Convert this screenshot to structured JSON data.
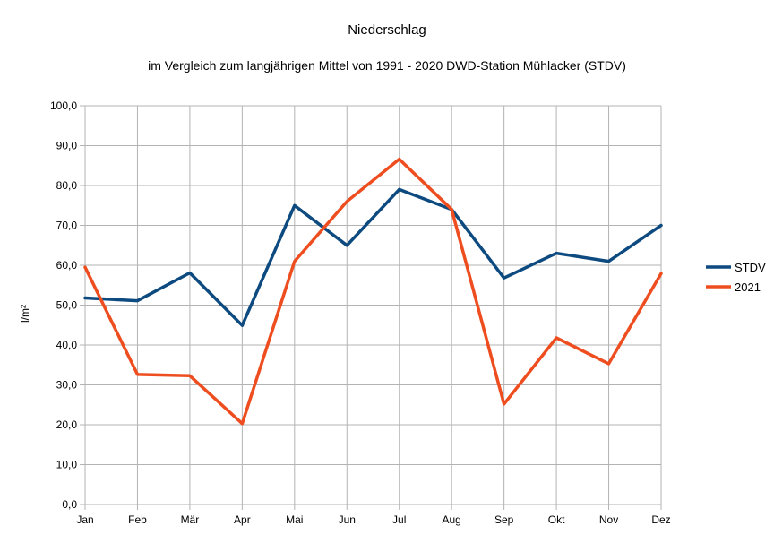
{
  "chart_data": {
    "type": "line",
    "title": "Niederschlag",
    "subtitle": "im Vergleich zum langjährigen Mittel von 1991 - 2020 DWD-Station Mühlacker (STDV)",
    "xlabel": "",
    "ylabel": "l/m²",
    "categories": [
      "Jan",
      "Feb",
      "Mär",
      "Apr",
      "Mai",
      "Jun",
      "Jul",
      "Aug",
      "Sep",
      "Okt",
      "Nov",
      "Dez"
    ],
    "ylim": [
      0,
      100
    ],
    "yticks": [
      "0,0",
      "10,0",
      "20,0",
      "30,0",
      "40,0",
      "50,0",
      "60,0",
      "70,0",
      "80,0",
      "90,0",
      "100,0"
    ],
    "grid": true,
    "legend_position": "right",
    "series": [
      {
        "name": "STDV",
        "color": "#0d4a80",
        "values": [
          51.8,
          51.1,
          58.1,
          44.9,
          75.0,
          65.0,
          79.0,
          74.0,
          56.8,
          63.0,
          61.0,
          70.0
        ]
      },
      {
        "name": "2021",
        "color": "#ee4e1f",
        "values": [
          59.5,
          32.6,
          32.3,
          20.3,
          61.0,
          76.0,
          86.6,
          74.0,
          25.2,
          41.8,
          35.3,
          57.9
        ]
      }
    ]
  }
}
